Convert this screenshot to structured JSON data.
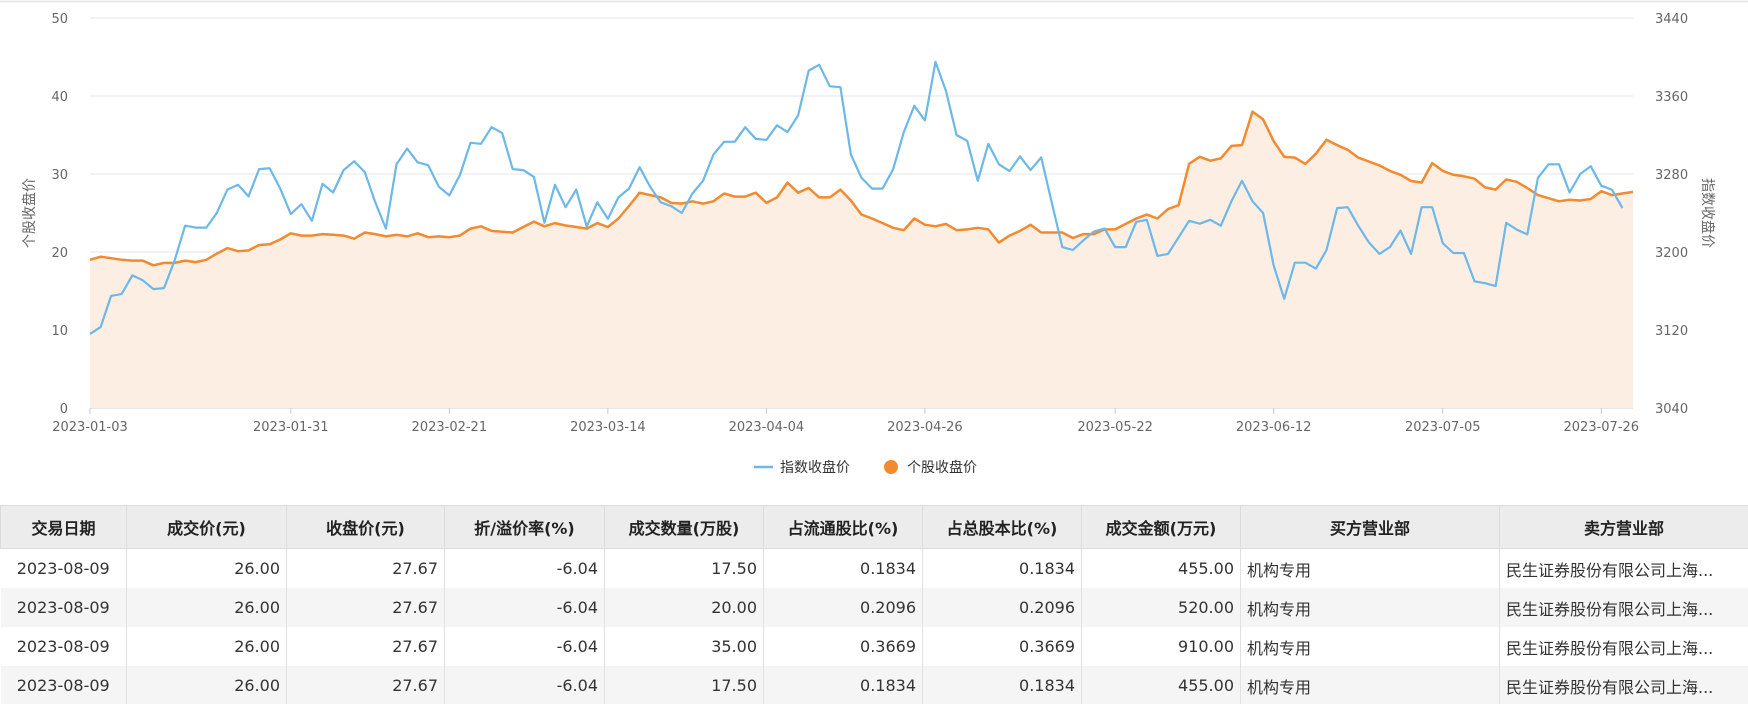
{
  "chart_data": {
    "type": "line",
    "x_ticks": [
      "2023-01-03",
      "2023-01-31",
      "2023-02-21",
      "2023-03-14",
      "2023-04-04",
      "2023-04-26",
      "2023-05-22",
      "2023-06-12",
      "2023-07-05",
      "2023-07-26"
    ],
    "y_left": {
      "label": "个股收盘价",
      "ticks": [
        "0",
        "10",
        "20",
        "30",
        "40",
        "50"
      ],
      "range": [
        0,
        50
      ]
    },
    "y_right": {
      "label": "指数收盘价",
      "ticks": [
        "3040",
        "3120",
        "3200",
        "3280",
        "3360",
        "3440"
      ],
      "range": [
        3040,
        3440
      ]
    },
    "grid": true,
    "legend": {
      "position": "bottom",
      "items": [
        "指数收盘价",
        "个股收盘价"
      ]
    },
    "series": [
      {
        "name": "指数收盘价",
        "axis": "right",
        "color": "#6cb8e9",
        "style": "line",
        "values": [
          3116,
          3123,
          3155,
          3157,
          3176,
          3171,
          3162,
          3163,
          3191,
          3227,
          3225,
          3225,
          3240,
          3264,
          3269,
          3257,
          3285,
          3286,
          3265,
          3239,
          3249,
          3232,
          3270,
          3261,
          3284,
          3293,
          3282,
          3251,
          3224,
          3290,
          3306,
          3292,
          3289,
          3267,
          3258,
          3279,
          3312,
          3311,
          3328,
          3322,
          3285,
          3284,
          3277,
          3230,
          3269,
          3246,
          3264,
          3226,
          3251,
          3234,
          3256,
          3265,
          3287,
          3267,
          3251,
          3247,
          3240,
          3260,
          3273,
          3300,
          3313,
          3313,
          3328,
          3316,
          3315,
          3330,
          3323,
          3340,
          3386,
          3392,
          3370,
          3369,
          3300,
          3276,
          3265,
          3265,
          3285,
          3323,
          3350,
          3335,
          3395,
          3365,
          3320,
          3314,
          3273,
          3311,
          3290,
          3283,
          3298,
          3284,
          3297,
          3251,
          3205,
          3202,
          3212,
          3221,
          3224,
          3205,
          3205,
          3231,
          3233,
          3196,
          3198,
          3215,
          3232,
          3229,
          3233,
          3227,
          3252,
          3273,
          3252,
          3240,
          3186,
          3152,
          3189,
          3189,
          3183,
          3202,
          3245,
          3246,
          3227,
          3210,
          3198,
          3205,
          3222,
          3198,
          3246,
          3246,
          3209,
          3199,
          3199,
          3170,
          3168,
          3165,
          3230,
          3223,
          3218,
          3276,
          3290,
          3290,
          3261,
          3280,
          3288,
          3268,
          3264,
          3245
        ]
      },
      {
        "name": "个股收盘价",
        "axis": "left",
        "color": "#f28a30",
        "style": "area",
        "fill": "#fdeee4",
        "values": [
          19.0,
          19.4,
          19.2,
          19.0,
          18.9,
          18.9,
          18.3,
          18.6,
          18.6,
          18.9,
          18.7,
          19.0,
          19.8,
          20.5,
          20.1,
          20.2,
          20.9,
          21.0,
          21.6,
          22.4,
          22.1,
          22.1,
          22.3,
          22.2,
          22.1,
          21.7,
          22.5,
          22.3,
          22.0,
          22.2,
          22.0,
          22.4,
          21.9,
          22.0,
          21.9,
          22.1,
          23.0,
          23.3,
          22.7,
          22.6,
          22.5,
          23.2,
          23.9,
          23.3,
          23.7,
          23.4,
          23.2,
          23.0,
          23.7,
          23.2,
          24.3,
          25.9,
          27.6,
          27.3,
          27.0,
          26.3,
          26.2,
          26.5,
          26.2,
          26.5,
          27.5,
          27.1,
          27.1,
          27.6,
          26.3,
          27.0,
          28.9,
          27.6,
          28.2,
          27.0,
          27.0,
          28.0,
          26.6,
          24.8,
          24.3,
          23.7,
          23.1,
          22.8,
          24.3,
          23.5,
          23.3,
          23.6,
          22.8,
          22.9,
          23.1,
          22.9,
          21.2,
          22.1,
          22.7,
          23.5,
          22.5,
          22.5,
          22.5,
          21.8,
          22.3,
          22.3,
          22.9,
          22.9,
          23.6,
          24.3,
          24.8,
          24.3,
          25.5,
          26.0,
          31.3,
          32.2,
          31.7,
          32.0,
          33.6,
          33.7,
          38.0,
          37.0,
          34.2,
          32.2,
          32.1,
          31.3,
          32.6,
          34.4,
          33.7,
          33.1,
          32.1,
          31.6,
          31.1,
          30.4,
          29.9,
          29.1,
          28.9,
          31.4,
          30.4,
          29.9,
          29.7,
          29.4,
          28.3,
          28.0,
          29.3,
          29.0,
          28.2,
          27.3,
          26.9,
          26.5,
          26.7,
          26.6,
          26.8,
          27.8,
          27.3,
          27.5,
          27.7
        ]
      }
    ]
  },
  "table": {
    "headers": [
      "交易日期",
      "成交价(元)",
      "收盘价(元)",
      "折/溢价率(%)",
      "成交数量(万股)",
      "占流通股比(%)",
      "占总股本比(%)",
      "成交金额(万元)",
      "买方营业部",
      "卖方营业部"
    ],
    "rows": [
      [
        "2023-08-09",
        "26.00",
        "27.67",
        "-6.04",
        "17.50",
        "0.1834",
        "0.1834",
        "455.00",
        "机构专用",
        "民生证券股份有限公司上海..."
      ],
      [
        "2023-08-09",
        "26.00",
        "27.67",
        "-6.04",
        "20.00",
        "0.2096",
        "0.2096",
        "520.00",
        "机构专用",
        "民生证券股份有限公司上海..."
      ],
      [
        "2023-08-09",
        "26.00",
        "27.67",
        "-6.04",
        "35.00",
        "0.3669",
        "0.3669",
        "910.00",
        "机构专用",
        "民生证券股份有限公司上海..."
      ],
      [
        "2023-08-09",
        "26.00",
        "27.67",
        "-6.04",
        "17.50",
        "0.1834",
        "0.1834",
        "455.00",
        "机构专用",
        "民生证券股份有限公司上海..."
      ]
    ]
  }
}
